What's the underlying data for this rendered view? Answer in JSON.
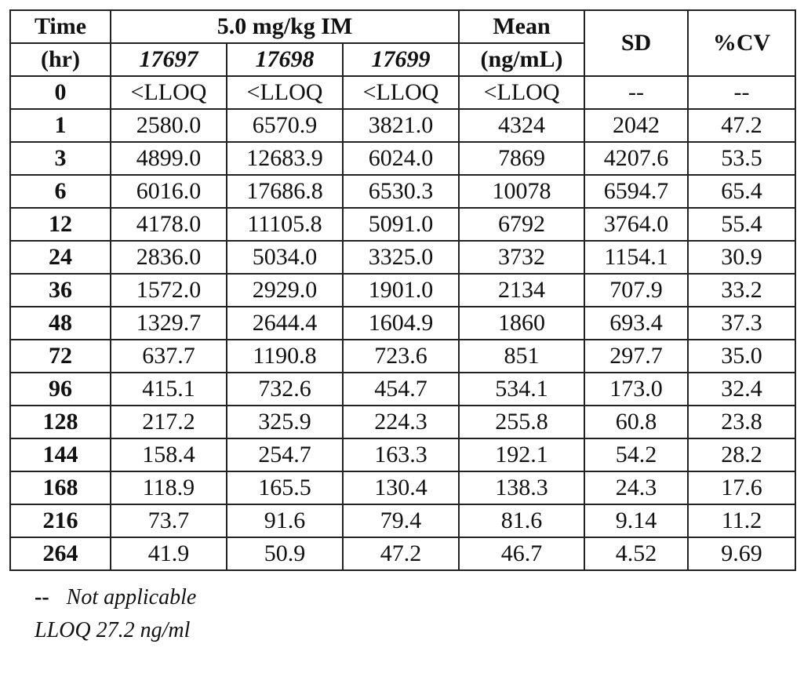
{
  "table": {
    "headers": {
      "time_line1": "Time",
      "time_line2": "(hr)",
      "dose_group": "5.0 mg/kg IM",
      "subjects": [
        "17697",
        "17698",
        "17699"
      ],
      "mean_line1": "Mean",
      "mean_line2": "(ng/mL)",
      "sd": "SD",
      "cv": "%CV"
    },
    "rows": [
      {
        "time": "0",
        "s1": "<LLOQ",
        "s2": "<LLOQ",
        "s3": "<LLOQ",
        "mean": "<LLOQ",
        "sd": "--",
        "cv": "--"
      },
      {
        "time": "1",
        "s1": "2580.0",
        "s2": "6570.9",
        "s3": "3821.0",
        "mean": "4324",
        "sd": "2042",
        "cv": "47.2"
      },
      {
        "time": "3",
        "s1": "4899.0",
        "s2": "12683.9",
        "s3": "6024.0",
        "mean": "7869",
        "sd": "4207.6",
        "cv": "53.5"
      },
      {
        "time": "6",
        "s1": "6016.0",
        "s2": "17686.8",
        "s3": "6530.3",
        "mean": "10078",
        "sd": "6594.7",
        "cv": "65.4"
      },
      {
        "time": "12",
        "s1": "4178.0",
        "s2": "11105.8",
        "s3": "5091.0",
        "mean": "6792",
        "sd": "3764.0",
        "cv": "55.4"
      },
      {
        "time": "24",
        "s1": "2836.0",
        "s2": "5034.0",
        "s3": "3325.0",
        "mean": "3732",
        "sd": "1154.1",
        "cv": "30.9"
      },
      {
        "time": "36",
        "s1": "1572.0",
        "s2": "2929.0",
        "s3": "1901.0",
        "mean": "2134",
        "sd": "707.9",
        "cv": "33.2"
      },
      {
        "time": "48",
        "s1": "1329.7",
        "s2": "2644.4",
        "s3": "1604.9",
        "mean": "1860",
        "sd": "693.4",
        "cv": "37.3"
      },
      {
        "time": "72",
        "s1": "637.7",
        "s2": "1190.8",
        "s3": "723.6",
        "mean": "851",
        "sd": "297.7",
        "cv": "35.0"
      },
      {
        "time": "96",
        "s1": "415.1",
        "s2": "732.6",
        "s3": "454.7",
        "mean": "534.1",
        "sd": "173.0",
        "cv": "32.4"
      },
      {
        "time": "128",
        "s1": "217.2",
        "s2": "325.9",
        "s3": "224.3",
        "mean": "255.8",
        "sd": "60.8",
        "cv": "23.8"
      },
      {
        "time": "144",
        "s1": "158.4",
        "s2": "254.7",
        "s3": "163.3",
        "mean": "192.1",
        "sd": "54.2",
        "cv": "28.2"
      },
      {
        "time": "168",
        "s1": "118.9",
        "s2": "165.5",
        "s3": "130.4",
        "mean": "138.3",
        "sd": "24.3",
        "cv": "17.6"
      },
      {
        "time": "216",
        "s1": "73.7",
        "s2": "91.6",
        "s3": "79.4",
        "mean": "81.6",
        "sd": "9.14",
        "cv": "11.2"
      },
      {
        "time": "264",
        "s1": "41.9",
        "s2": "50.9",
        "s3": "47.2",
        "mean": "46.7",
        "sd": "4.52",
        "cv": "9.69"
      }
    ]
  },
  "footnotes": {
    "na_mark": "--",
    "na_text": "Not applicable",
    "lloq": "LLOQ 27.2 ng/ml"
  }
}
